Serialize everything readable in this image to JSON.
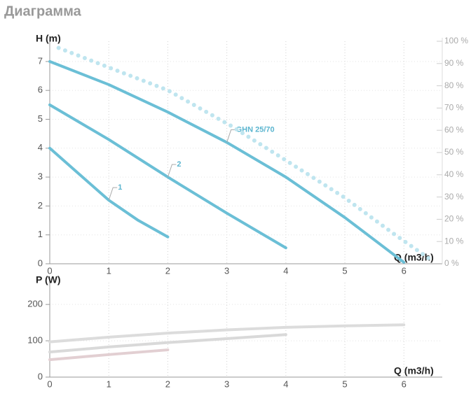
{
  "title": "Диаграмма",
  "chart_data": [
    {
      "type": "line",
      "ylabel": "H (m)",
      "xlabel": "Q (m3/h)",
      "xlim": [
        0,
        6.65
      ],
      "xticks": [
        0,
        1,
        2,
        3,
        4,
        5,
        6
      ],
      "ylim": [
        0,
        7.7
      ],
      "yticks": [
        0,
        1,
        2,
        3,
        4,
        5,
        6,
        7
      ],
      "y2lim": [
        0,
        100
      ],
      "y2ticks": [
        {
          "value": 0,
          "label": "0 %"
        },
        {
          "value": 10,
          "label": "10 %"
        },
        {
          "value": 20,
          "label": "20 %"
        },
        {
          "value": 30,
          "label": "30 %"
        },
        {
          "value": 40,
          "label": "40 %"
        },
        {
          "value": 50,
          "label": "50 %"
        },
        {
          "value": 60,
          "label": "60 %"
        },
        {
          "value": 70,
          "label": "70 %"
        },
        {
          "value": 80,
          "label": "80 %"
        },
        {
          "value": 90,
          "label": "90 %"
        },
        {
          "value": 100,
          "label": "100 %"
        }
      ],
      "grid": true,
      "series": [
        {
          "name": "1",
          "color": "#6bbfd6",
          "x": [
            0,
            0.5,
            1,
            1.5,
            2
          ],
          "values": [
            4,
            3.1,
            2.2,
            1.5,
            0.93
          ]
        },
        {
          "name": "2",
          "color": "#6bbfd6",
          "x": [
            0,
            1,
            2,
            3,
            4
          ],
          "values": [
            5.5,
            4.3,
            3.0,
            1.75,
            0.55
          ]
        },
        {
          "name": "GHN 25/70",
          "color": "#6bbfd6",
          "x": [
            0,
            1,
            2,
            3,
            4,
            5,
            6
          ],
          "values": [
            7,
            6.2,
            5.25,
            4.2,
            3.0,
            1.6,
            0.05
          ]
        },
        {
          "color": "#bfe5ef",
          "axis": "y2",
          "marker": "dots",
          "x": [
            0.15,
            2,
            3.07,
            3.97,
            4.98,
            5.8,
            6.5
          ],
          "values": [
            97,
            78,
            62,
            47,
            30,
            14,
            1
          ]
        }
      ]
    },
    {
      "type": "line",
      "ylabel": "P (W)",
      "xlabel": "Q (m3/h)",
      "xlim": [
        0,
        6.65
      ],
      "xticks": [
        0,
        1,
        2,
        3,
        4,
        5,
        6
      ],
      "ylim": [
        0,
        260
      ],
      "yticks": [
        0,
        100,
        200
      ],
      "grid": true,
      "series": [
        {
          "color": "#e2cfd2",
          "x": [
            0,
            1,
            2
          ],
          "values": [
            48,
            62,
            75
          ]
        },
        {
          "color": "#d9d9d9",
          "x": [
            0,
            1,
            2,
            3,
            4
          ],
          "values": [
            69,
            83,
            95,
            106,
            117
          ]
        },
        {
          "color": "#dcdcdc",
          "x": [
            0,
            1,
            2,
            3,
            4,
            5,
            6
          ],
          "values": [
            97,
            110,
            121,
            130,
            137,
            141,
            144
          ]
        }
      ]
    }
  ]
}
